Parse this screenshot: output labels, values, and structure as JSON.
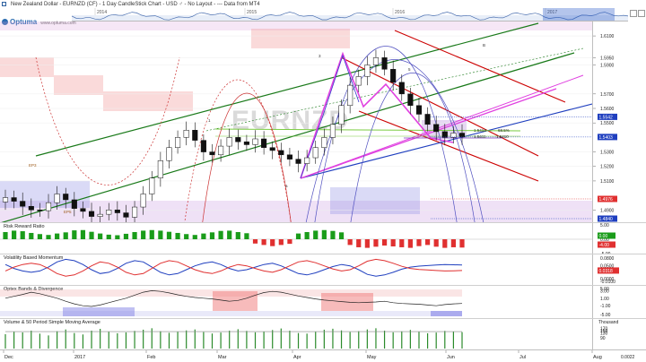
{
  "window": {
    "title": "New Zealand Dollar - EURNZD (CF) - 1 Day CandleStick Chart - USD ♂ - No Layout - --- Data from MT4"
  },
  "logo": {
    "brand": "Optuma",
    "url": "www.optuma.com"
  },
  "overview": {
    "years": [
      "2014",
      "2015",
      "2016",
      "2017"
    ]
  },
  "watermark": "EURNZD",
  "price_panel": {
    "axis_ticks": [
      "1.6100",
      "1.5950",
      "1.5900",
      "1.5700",
      "1.5600",
      "1.5500",
      "1.5300",
      "1.5200",
      "1.5100",
      "1.4900"
    ],
    "tags": [
      {
        "value": "1.5542",
        "color": "#1f3fbf"
      },
      {
        "value": "1.5403",
        "color": "#1f3fbf"
      },
      {
        "value": "1.4976",
        "color": "#e03030"
      },
      {
        "value": "1.4840",
        "color": "#1f3fbf"
      }
    ],
    "fib_labels": [
      "68.5%",
      "1.5413",
      "1.5411",
      "1.5410"
    ],
    "wave_labels": [
      "1",
      "3",
      "5",
      "B",
      "a",
      "EP3",
      "EP5"
    ],
    "accent": "#cc0000"
  },
  "rrr_panel": {
    "title": "Risk Reward Ratio",
    "axis_ticks": [
      "5.00",
      "0.00",
      "-5.00"
    ],
    "tags": [
      {
        "value": "0.00",
        "color": "#1a9c1a"
      },
      {
        "value": "-4.00",
        "color": "#e03030"
      }
    ]
  },
  "vbm_panel": {
    "title": "Volatility Based Momentum",
    "axis_ticks": [
      "0.0800",
      "0.0500",
      "0.0318",
      "0.0000",
      "-0.0100"
    ],
    "tags": [
      {
        "value": "0.0318",
        "color": "#e03030"
      }
    ]
  },
  "optex_panel": {
    "title": "Optex Bands & Divergence",
    "axis_ticks": [
      "5.00",
      "3.00",
      "1.00",
      "-1.00",
      "-5.00"
    ]
  },
  "volume_panel": {
    "title": "Volume & 50 Period Simple Moving Average",
    "unit": "Thousand",
    "axis_ticks": [
      "170",
      "150",
      "130",
      "90"
    ]
  },
  "x_axis": {
    "labels": [
      "Dec",
      "2017",
      "Feb",
      "Mar",
      "Apr",
      "May",
      "Jun",
      "Jul",
      "Aug"
    ],
    "corner": "0.0022"
  },
  "chart_data": {
    "type": "candlestick",
    "title": "New Zealand Dollar - EURNZD (CF) - 1 Day CandleStick Chart",
    "symbol": "EURNZD",
    "x_range": [
      "Dec 2016",
      "Aug 2017"
    ],
    "ylim": [
      1.484,
      1.615
    ],
    "last_close": 1.5403,
    "marked_levels": [
      1.5542,
      1.5403,
      1.4976,
      1.484
    ],
    "closes": [
      1.4985,
      1.496,
      1.4925,
      1.49,
      1.4895,
      1.495,
      1.501,
      1.497,
      1.491,
      1.489,
      1.4855,
      1.487,
      1.49,
      1.488,
      1.485,
      1.492,
      1.501,
      1.512,
      1.524,
      1.533,
      1.54,
      1.545,
      1.538,
      1.53,
      1.528,
      1.534,
      1.54,
      1.537,
      1.535,
      1.539,
      1.533,
      1.531,
      1.528,
      1.525,
      1.522,
      1.526,
      1.533,
      1.54,
      1.549,
      1.562,
      1.576,
      1.582,
      1.59,
      1.595,
      1.587,
      1.578,
      1.57,
      1.562,
      1.556,
      1.549,
      1.544,
      1.54,
      1.543,
      1.5403
    ],
    "series": [
      {
        "name": "Risk Reward Ratio",
        "values": [
          2.5,
          3.0,
          2.8,
          2.2,
          1.8,
          1.5,
          2.0,
          2.4,
          3.1,
          3.2,
          2.6,
          2.0,
          1.6,
          1.4,
          1.9,
          2.5,
          3.0,
          3.2,
          3.0,
          2.6,
          2.2,
          1.8,
          1.5,
          2.0,
          2.4,
          2.9,
          3.0,
          2.5,
          2.1,
          -1.5,
          -2.0,
          -2.4,
          -2.0,
          -1.6,
          2.0,
          2.5,
          3.0,
          3.2,
          2.9,
          2.4,
          -2.0,
          -2.8,
          -3.0,
          -2.6,
          -2.2,
          -2.5,
          -2.8,
          -3.0,
          -2.4,
          -2.0,
          -2.6,
          -3.0,
          -2.8,
          -2.9
        ]
      },
      {
        "name": "Volatility Based Momentum",
        "values": [
          0.03,
          0.045,
          0.055,
          0.06,
          0.055,
          0.04,
          0.02,
          0.01,
          0.015,
          0.03,
          0.05,
          0.065,
          0.06,
          0.045,
          0.025,
          0.015,
          0.02,
          0.04,
          0.06,
          0.07,
          0.065,
          0.05,
          0.035,
          0.025,
          0.02,
          0.03,
          0.045,
          0.055,
          0.05,
          0.04,
          0.03,
          0.025,
          0.035,
          0.05,
          0.065,
          0.07,
          0.062,
          0.05,
          0.038,
          0.03,
          0.035,
          0.05,
          0.068,
          0.075,
          0.07,
          0.06,
          0.048,
          0.04,
          0.036,
          0.034,
          0.032,
          0.03,
          0.031,
          0.0318
        ]
      },
      {
        "name": "Optex Bands & Divergence",
        "values": [
          1.0,
          1.5,
          2.0,
          2.6,
          2.2,
          1.6,
          1.0,
          0.2,
          -0.5,
          -1.0,
          -1.2,
          -0.8,
          -0.2,
          0.4,
          1.0,
          1.8,
          2.6,
          3.0,
          2.8,
          2.4,
          1.9,
          1.5,
          1.2,
          1.0,
          0.8,
          0.5,
          0.2,
          0.4,
          1.0,
          1.8,
          2.5,
          2.8,
          2.6,
          2.1,
          1.6,
          1.2,
          0.8,
          0.5,
          0.3,
          0.1,
          -0.1,
          -0.2,
          -0.1,
          0.0,
          0.2,
          -0.2,
          -0.4,
          -0.5,
          -0.6,
          -0.8,
          -1.0,
          -0.7,
          -0.5,
          -0.4
        ]
      },
      {
        "name": "Volume & 50 Period Simple Moving Average",
        "values": [
          120,
          140,
          135,
          150,
          125,
          110,
          145,
          160,
          130,
          118,
          150,
          165,
          140,
          128,
          135,
          148,
          158,
          170,
          145,
          132,
          140,
          152,
          160,
          138,
          126,
          134,
          150,
          162,
          148,
          136,
          142,
          155,
          168,
          150,
          130,
          125,
          140,
          158,
          166,
          152,
          138,
          146,
          160,
          170,
          150,
          136,
          144,
          156,
          140,
          128,
          134,
          148,
          142,
          138
        ]
      }
    ]
  }
}
